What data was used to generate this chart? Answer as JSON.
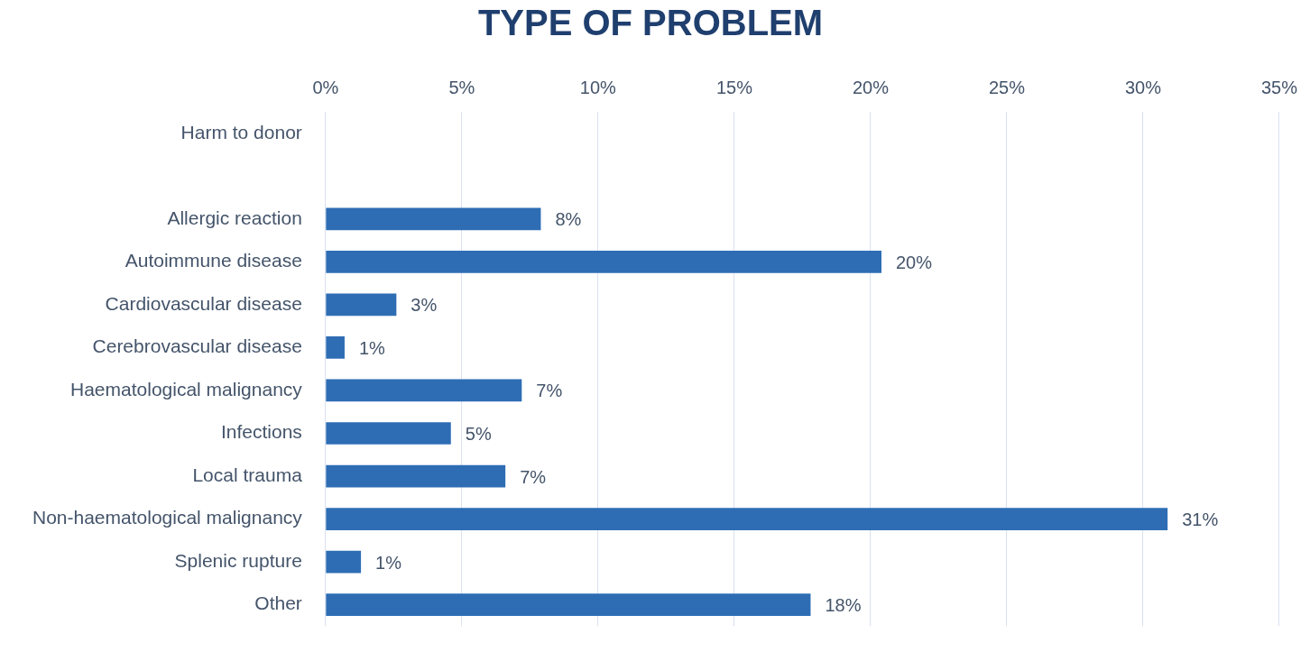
{
  "chart_data": {
    "type": "bar",
    "orientation": "horizontal",
    "title": "TYPE OF PROBLEM",
    "categories": [
      "Harm to donor",
      null,
      "Allergic reaction",
      "Autoimmune disease",
      "Cardiovascular disease",
      "Cerebrovascular disease",
      "Haematological malignancy",
      "Infections",
      "Local trauma",
      "Non-haematological malignancy",
      "Splenic rupture",
      "Other"
    ],
    "values": [
      null,
      null,
      7.9,
      20.4,
      2.6,
      0.7,
      7.2,
      4.6,
      6.6,
      30.9,
      1.3,
      17.8
    ],
    "value_labels": [
      null,
      null,
      "8%",
      "20%",
      "3%",
      "1%",
      "7%",
      "5%",
      "7%",
      "31%",
      "1%",
      "18%"
    ],
    "color": "#2e6db4",
    "xlim": [
      0,
      35
    ],
    "xticks": [
      {
        "value": 0,
        "label": "0%"
      },
      {
        "value": 5,
        "label": "5%"
      },
      {
        "value": 10,
        "label": "10%"
      },
      {
        "value": 15,
        "label": "15%"
      },
      {
        "value": 20,
        "label": "20%"
      },
      {
        "value": 25,
        "label": "25%"
      },
      {
        "value": 30,
        "label": "30%"
      },
      {
        "value": 35,
        "label": "35%"
      }
    ],
    "grid": "x"
  }
}
